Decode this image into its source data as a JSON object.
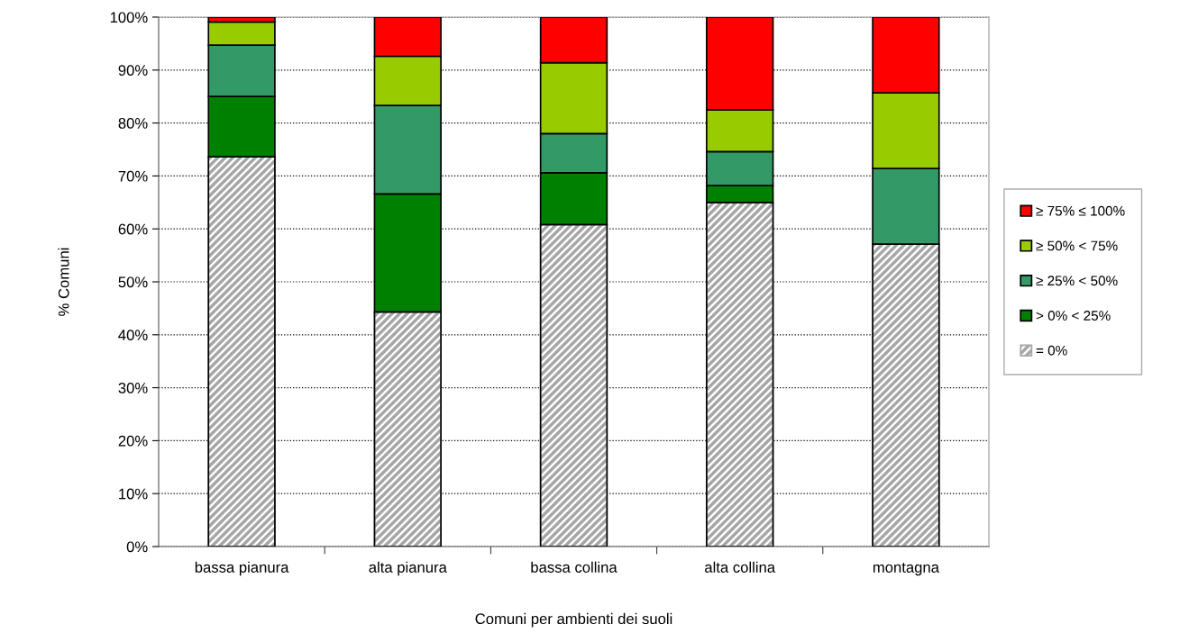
{
  "chart_data": {
    "type": "bar",
    "stacked": true,
    "xlabel": "Comuni per ambienti dei suoli",
    "ylabel": "% Comuni",
    "categories": [
      "bassa pianura",
      "alta pianura",
      "bassa collina",
      "alta collina",
      "montagna"
    ],
    "series": [
      {
        "name": "= 0%",
        "color": "#a6a6a6",
        "values": [
          73.6,
          44.3,
          60.8,
          65.0,
          57.1
        ]
      },
      {
        "name": "> 0% < 25%",
        "color": "#008000",
        "values": [
          11.4,
          22.3,
          9.8,
          3.2,
          0
        ]
      },
      {
        "name": "≥ 25% < 50%",
        "color": "#339966",
        "values": [
          9.7,
          16.7,
          7.4,
          6.4,
          14.3
        ]
      },
      {
        "name": "≥ 50% < 75%",
        "color": "#99cc00",
        "values": [
          4.4,
          9.3,
          13.4,
          7.9,
          14.3
        ]
      },
      {
        "name": "≥ 75% ≤ 100%",
        "color": "#ff0000",
        "values": [
          0.9,
          7.4,
          8.6,
          17.5,
          14.3
        ]
      }
    ],
    "ylim": [
      0,
      100
    ],
    "yticks": [
      {
        "value": 0,
        "label": "0%"
      },
      {
        "value": 10,
        "label": "10%"
      },
      {
        "value": 20,
        "label": "20%"
      },
      {
        "value": 30,
        "label": "30%"
      },
      {
        "value": 40,
        "label": "40%"
      },
      {
        "value": 50,
        "label": "50%"
      },
      {
        "value": 60,
        "label": "60%"
      },
      {
        "value": 70,
        "label": "70%"
      },
      {
        "value": 80,
        "label": "80%"
      },
      {
        "value": 90,
        "label": "90%"
      },
      {
        "value": 100,
        "label": "100%"
      }
    ],
    "grid": "y",
    "legend": "right"
  }
}
